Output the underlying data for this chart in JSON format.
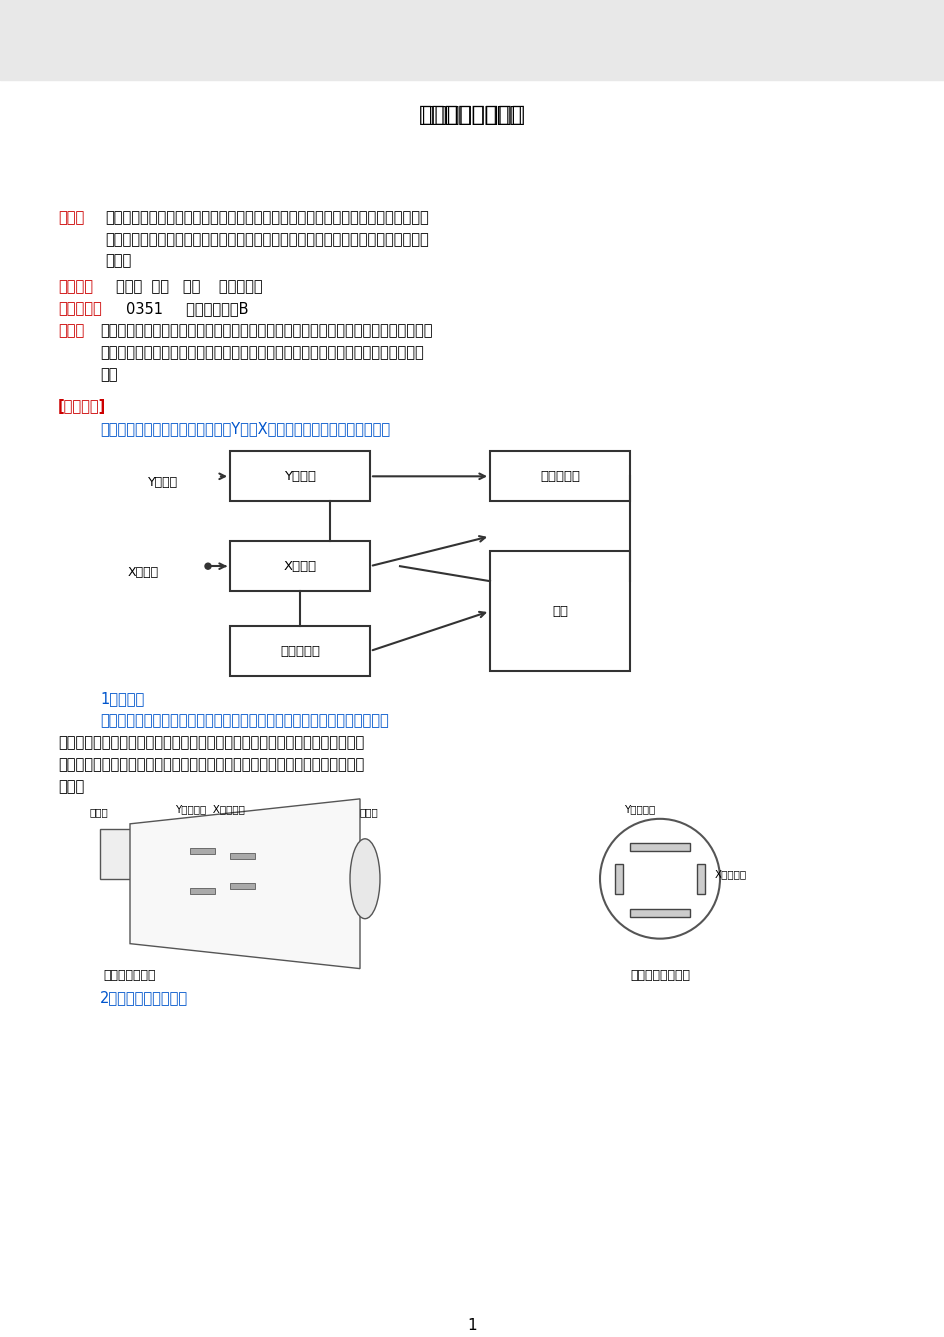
{
  "title": "示波器的使用探究",
  "bg_color": "#ffffff",
  "text_color": "#000000",
  "red_color": "#cc0000",
  "blue_color": "#0000cc",
  "abstract_label": "摘要：",
  "abstract_line1": "了解示波器显示波形的原理，了解示波器各主要组成部分及它们之间的联系和配合；",
  "abstract_line2": "熟悉使用示波器的基本方法，学会用示波器测量波形的电压幅度和频率；观察李萨如",
  "abstract_line3": "图形。",
  "keywords_label": "关键词：",
  "keywords": "示波器  电压   波形    李萨茹图形",
  "class_label": "中图分号：",
  "class_val": "0351     文献标识码：B",
  "intro_label": "引言：",
  "intro_line1": "示波器是一种应用极广泛的电子测量仪器，主要用它观察随时间变化的电压函数图像。",
  "intro_line2": "示波器能把抽象的看不见的周期性信号或瞬变过程，在荧光屏上描绘成具体的图像波",
  "intro_line3": "形。",
  "section_label": "[实验原理]",
  "section_line1": "示波器由示波管、扫描同步系统、Y轴和X轴放大系统和电源四部分组成，",
  "sub1_label": "1、示波管",
  "sub1_line1": "如图所示，左端为一电子枪，电子枪加热后发出一束电子，电子经电场加速",
  "sub1_line2": "以高速打在右端的荧光屏上，屏上的荧光物发光形成一亮点。亮点在偏转板电压",
  "sub1_line3": "的作用下，位置也随之改变。在一定范围内，亮点的位移与偏转板上所加电压成",
  "sub1_line4": "正比。",
  "sub2_label": "示波管结构简图",
  "sub2_label2": "示波管内的偏转板",
  "sub3_label": "2、扫描与同步的作用",
  "page_num": "1"
}
